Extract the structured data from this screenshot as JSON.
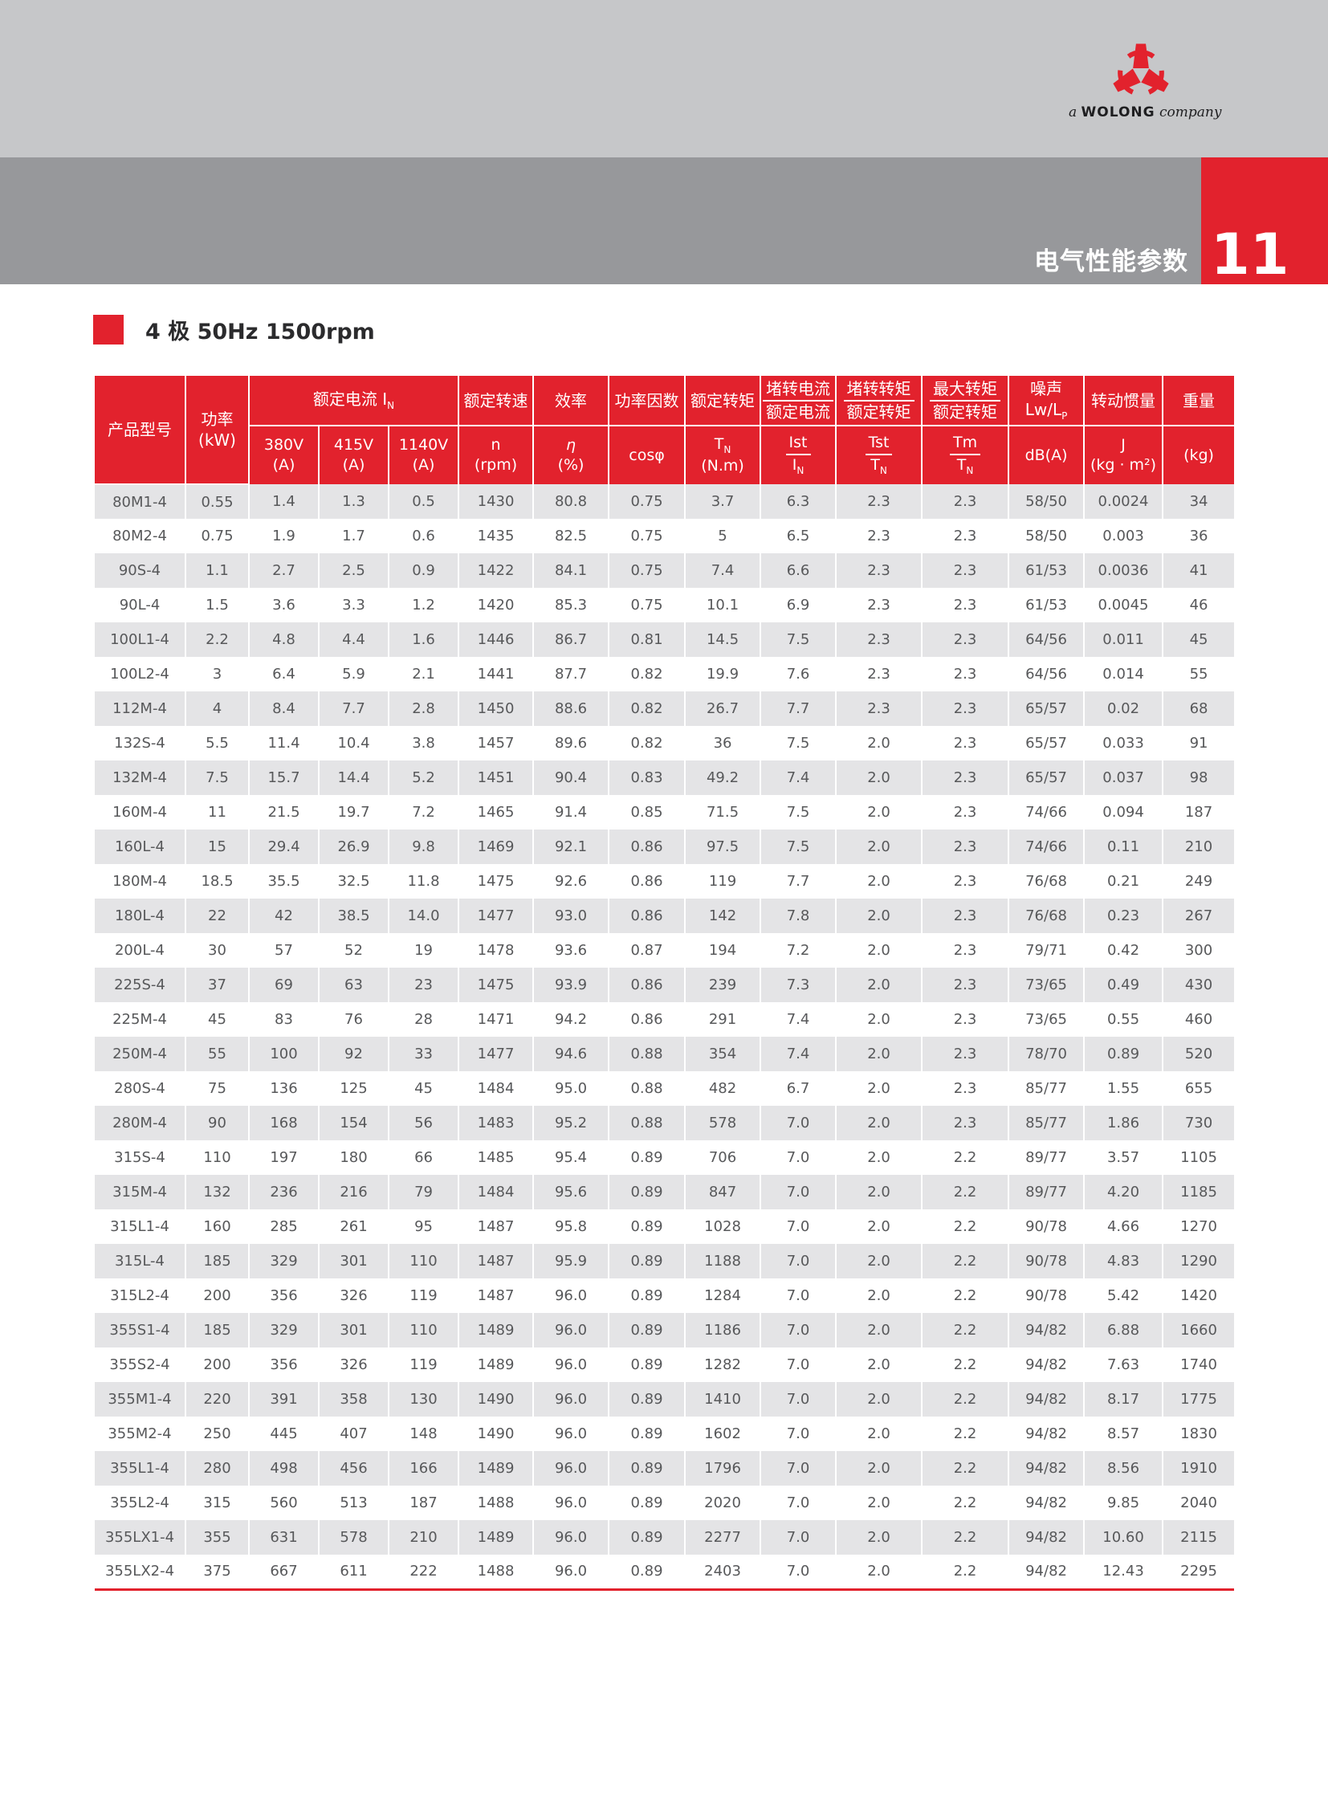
{
  "logo": {
    "prefix": "a",
    "brand": "WOLONG",
    "suffix": "company"
  },
  "banner": {
    "section_title": "电气性能参数",
    "page_number": "11"
  },
  "section": {
    "title": "4 极 50Hz 1500rpm"
  },
  "colors": {
    "accent_red": "#e2222d",
    "banner_gray": "#97989b",
    "top_band_gray": "#c6c7c9",
    "row_gray": "#e4e4e6"
  },
  "table": {
    "header": {
      "product": "产品型号",
      "power": [
        "功率",
        "(kW)"
      ],
      "rated_current_group": "额定电流 I",
      "rated_current_group_sub": "N",
      "v380": [
        "380V",
        "(A)"
      ],
      "v415": [
        "415V",
        "(A)"
      ],
      "v1140": [
        "1140V",
        "(A)"
      ],
      "speed": [
        "额定转速",
        "n",
        "(rpm)"
      ],
      "efficiency": [
        "效率",
        "η",
        "(%)"
      ],
      "power_factor": [
        "功率因数",
        "cosφ"
      ],
      "rated_torque": [
        "额定转矩",
        "T",
        "N",
        "(N.m)"
      ],
      "locked_rotor_current": {
        "cn_num": "堵转电流",
        "cn_den": "额定电流",
        "sym_num": "Ist",
        "sym_den": "I",
        "sym_den_sub": "N"
      },
      "locked_rotor_torque": {
        "cn_num": "堵转转矩",
        "cn_den": "额定转矩",
        "sym_num": "Tst",
        "sym_den": "T",
        "sym_den_sub": "N"
      },
      "breakdown_torque": {
        "cn_num": "最大转矩",
        "cn_den": "额定转矩",
        "sym_num": "Tm",
        "sym_den": "T",
        "sym_den_sub": "N"
      },
      "noise": {
        "cn": "噪声",
        "sym": "Lw/L",
        "sym_sub": "P",
        "unit": "dB(A)"
      },
      "inertia": {
        "cn": "转动惯量",
        "sym": "J",
        "unit": "(kg · m²)"
      },
      "weight": {
        "cn": "重量",
        "unit": "(kg)"
      }
    },
    "rows": [
      [
        "80M1-4",
        "0.55",
        "1.4",
        "1.3",
        "0.5",
        "1430",
        "80.8",
        "0.75",
        "3.7",
        "6.3",
        "2.3",
        "2.3",
        "58/50",
        "0.0024",
        "34"
      ],
      [
        "80M2-4",
        "0.75",
        "1.9",
        "1.7",
        "0.6",
        "1435",
        "82.5",
        "0.75",
        "5",
        "6.5",
        "2.3",
        "2.3",
        "58/50",
        "0.003",
        "36"
      ],
      [
        "90S-4",
        "1.1",
        "2.7",
        "2.5",
        "0.9",
        "1422",
        "84.1",
        "0.75",
        "7.4",
        "6.6",
        "2.3",
        "2.3",
        "61/53",
        "0.0036",
        "41"
      ],
      [
        "90L-4",
        "1.5",
        "3.6",
        "3.3",
        "1.2",
        "1420",
        "85.3",
        "0.75",
        "10.1",
        "6.9",
        "2.3",
        "2.3",
        "61/53",
        "0.0045",
        "46"
      ],
      [
        "100L1-4",
        "2.2",
        "4.8",
        "4.4",
        "1.6",
        "1446",
        "86.7",
        "0.81",
        "14.5",
        "7.5",
        "2.3",
        "2.3",
        "64/56",
        "0.011",
        "45"
      ],
      [
        "100L2-4",
        "3",
        "6.4",
        "5.9",
        "2.1",
        "1441",
        "87.7",
        "0.82",
        "19.9",
        "7.6",
        "2.3",
        "2.3",
        "64/56",
        "0.014",
        "55"
      ],
      [
        "112M-4",
        "4",
        "8.4",
        "7.7",
        "2.8",
        "1450",
        "88.6",
        "0.82",
        "26.7",
        "7.7",
        "2.3",
        "2.3",
        "65/57",
        "0.02",
        "68"
      ],
      [
        "132S-4",
        "5.5",
        "11.4",
        "10.4",
        "3.8",
        "1457",
        "89.6",
        "0.82",
        "36",
        "7.5",
        "2.0",
        "2.3",
        "65/57",
        "0.033",
        "91"
      ],
      [
        "132M-4",
        "7.5",
        "15.7",
        "14.4",
        "5.2",
        "1451",
        "90.4",
        "0.83",
        "49.2",
        "7.4",
        "2.0",
        "2.3",
        "65/57",
        "0.037",
        "98"
      ],
      [
        "160M-4",
        "11",
        "21.5",
        "19.7",
        "7.2",
        "1465",
        "91.4",
        "0.85",
        "71.5",
        "7.5",
        "2.0",
        "2.3",
        "74/66",
        "0.094",
        "187"
      ],
      [
        "160L-4",
        "15",
        "29.4",
        "26.9",
        "9.8",
        "1469",
        "92.1",
        "0.86",
        "97.5",
        "7.5",
        "2.0",
        "2.3",
        "74/66",
        "0.11",
        "210"
      ],
      [
        "180M-4",
        "18.5",
        "35.5",
        "32.5",
        "11.8",
        "1475",
        "92.6",
        "0.86",
        "119",
        "7.7",
        "2.0",
        "2.3",
        "76/68",
        "0.21",
        "249"
      ],
      [
        "180L-4",
        "22",
        "42",
        "38.5",
        "14.0",
        "1477",
        "93.0",
        "0.86",
        "142",
        "7.8",
        "2.0",
        "2.3",
        "76/68",
        "0.23",
        "267"
      ],
      [
        "200L-4",
        "30",
        "57",
        "52",
        "19",
        "1478",
        "93.6",
        "0.87",
        "194",
        "7.2",
        "2.0",
        "2.3",
        "79/71",
        "0.42",
        "300"
      ],
      [
        "225S-4",
        "37",
        "69",
        "63",
        "23",
        "1475",
        "93.9",
        "0.86",
        "239",
        "7.3",
        "2.0",
        "2.3",
        "73/65",
        "0.49",
        "430"
      ],
      [
        "225M-4",
        "45",
        "83",
        "76",
        "28",
        "1471",
        "94.2",
        "0.86",
        "291",
        "7.4",
        "2.0",
        "2.3",
        "73/65",
        "0.55",
        "460"
      ],
      [
        "250M-4",
        "55",
        "100",
        "92",
        "33",
        "1477",
        "94.6",
        "0.88",
        "354",
        "7.4",
        "2.0",
        "2.3",
        "78/70",
        "0.89",
        "520"
      ],
      [
        "280S-4",
        "75",
        "136",
        "125",
        "45",
        "1484",
        "95.0",
        "0.88",
        "482",
        "6.7",
        "2.0",
        "2.3",
        "85/77",
        "1.55",
        "655"
      ],
      [
        "280M-4",
        "90",
        "168",
        "154",
        "56",
        "1483",
        "95.2",
        "0.88",
        "578",
        "7.0",
        "2.0",
        "2.3",
        "85/77",
        "1.86",
        "730"
      ],
      [
        "315S-4",
        "110",
        "197",
        "180",
        "66",
        "1485",
        "95.4",
        "0.89",
        "706",
        "7.0",
        "2.0",
        "2.2",
        "89/77",
        "3.57",
        "1105"
      ],
      [
        "315M-4",
        "132",
        "236",
        "216",
        "79",
        "1484",
        "95.6",
        "0.89",
        "847",
        "7.0",
        "2.0",
        "2.2",
        "89/77",
        "4.20",
        "1185"
      ],
      [
        "315L1-4",
        "160",
        "285",
        "261",
        "95",
        "1487",
        "95.8",
        "0.89",
        "1028",
        "7.0",
        "2.0",
        "2.2",
        "90/78",
        "4.66",
        "1270"
      ],
      [
        "315L-4",
        "185",
        "329",
        "301",
        "110",
        "1487",
        "95.9",
        "0.89",
        "1188",
        "7.0",
        "2.0",
        "2.2",
        "90/78",
        "4.83",
        "1290"
      ],
      [
        "315L2-4",
        "200",
        "356",
        "326",
        "119",
        "1487",
        "96.0",
        "0.89",
        "1284",
        "7.0",
        "2.0",
        "2.2",
        "90/78",
        "5.42",
        "1420"
      ],
      [
        "355S1-4",
        "185",
        "329",
        "301",
        "110",
        "1489",
        "96.0",
        "0.89",
        "1186",
        "7.0",
        "2.0",
        "2.2",
        "94/82",
        "6.88",
        "1660"
      ],
      [
        "355S2-4",
        "200",
        "356",
        "326",
        "119",
        "1489",
        "96.0",
        "0.89",
        "1282",
        "7.0",
        "2.0",
        "2.2",
        "94/82",
        "7.63",
        "1740"
      ],
      [
        "355M1-4",
        "220",
        "391",
        "358",
        "130",
        "1490",
        "96.0",
        "0.89",
        "1410",
        "7.0",
        "2.0",
        "2.2",
        "94/82",
        "8.17",
        "1775"
      ],
      [
        "355M2-4",
        "250",
        "445",
        "407",
        "148",
        "1490",
        "96.0",
        "0.89",
        "1602",
        "7.0",
        "2.0",
        "2.2",
        "94/82",
        "8.57",
        "1830"
      ],
      [
        "355L1-4",
        "280",
        "498",
        "456",
        "166",
        "1489",
        "96.0",
        "0.89",
        "1796",
        "7.0",
        "2.0",
        "2.2",
        "94/82",
        "8.56",
        "1910"
      ],
      [
        "355L2-4",
        "315",
        "560",
        "513",
        "187",
        "1488",
        "96.0",
        "0.89",
        "2020",
        "7.0",
        "2.0",
        "2.2",
        "94/82",
        "9.85",
        "2040"
      ],
      [
        "355LX1-4",
        "355",
        "631",
        "578",
        "210",
        "1489",
        "96.0",
        "0.89",
        "2277",
        "7.0",
        "2.0",
        "2.2",
        "94/82",
        "10.60",
        "2115"
      ],
      [
        "355LX2-4",
        "375",
        "667",
        "611",
        "222",
        "1488",
        "96.0",
        "0.89",
        "2403",
        "7.0",
        "2.0",
        "2.2",
        "94/82",
        "12.43",
        "2295"
      ]
    ]
  }
}
